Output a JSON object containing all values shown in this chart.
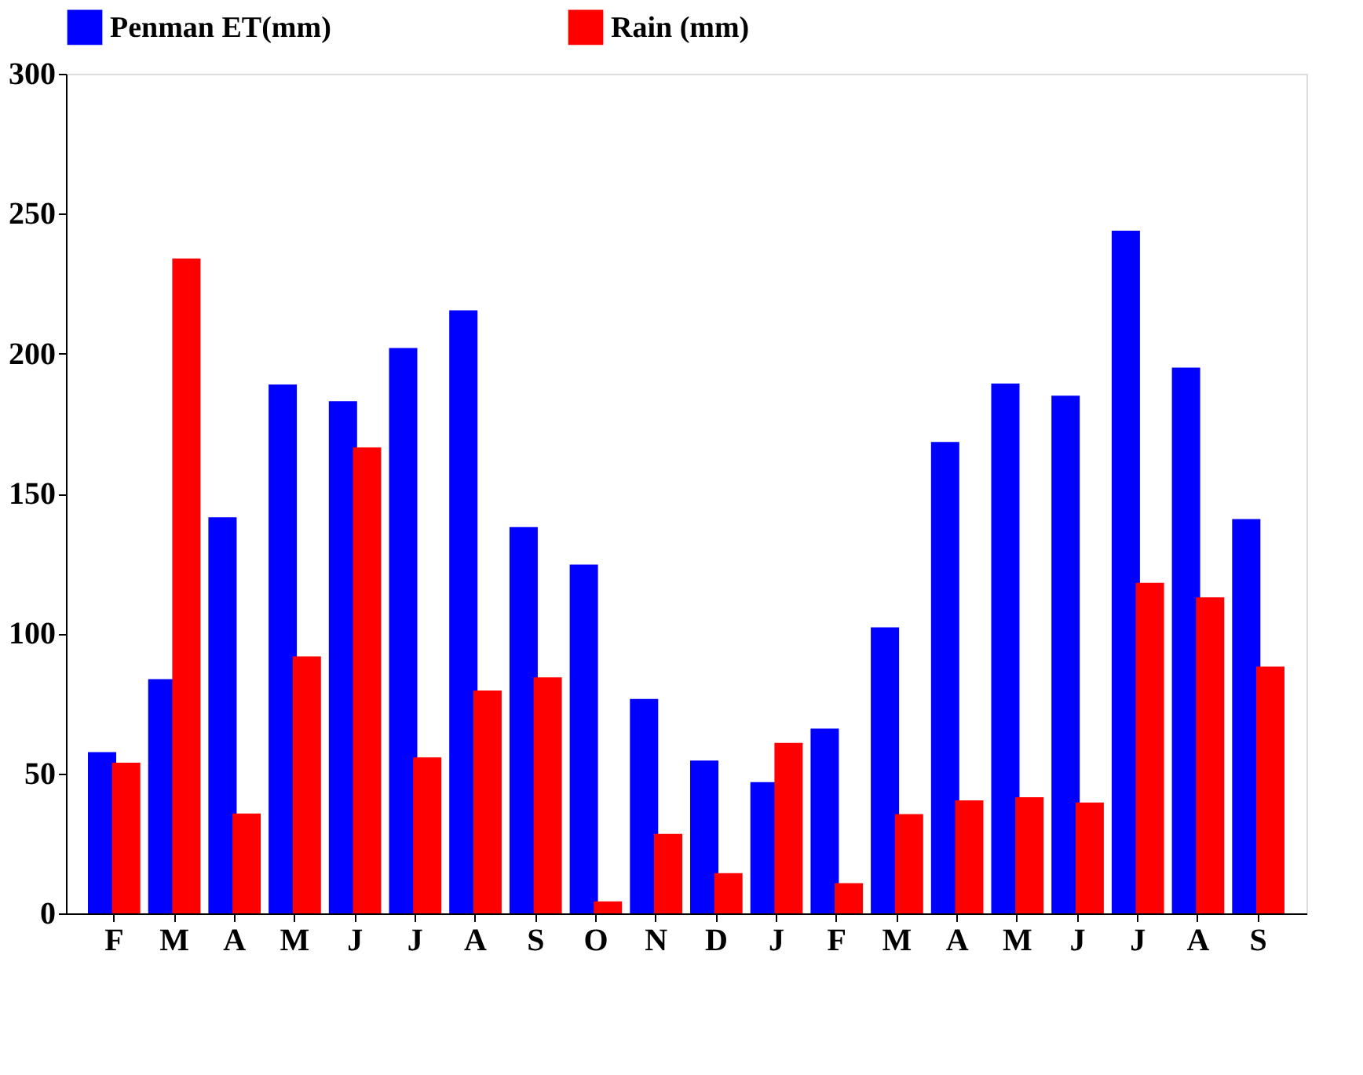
{
  "chart_data": {
    "type": "bar",
    "categories": [
      "F",
      "M",
      "A",
      "M",
      "J",
      "J",
      "A",
      "S",
      "O",
      "N",
      "D",
      "J",
      "F",
      "M",
      "A",
      "M",
      "J",
      "J",
      "A",
      "S"
    ],
    "series": [
      {
        "name": "Penman ET(mm)",
        "color": "#0000ff",
        "values": [
          57.6,
          83.7,
          141.5,
          189,
          183,
          202,
          215.5,
          138,
          124.6,
          76.6,
          54.6,
          46.9,
          66,
          102.2,
          168.4,
          189.3,
          185,
          243.9,
          195,
          140.9
        ]
      },
      {
        "name": "Rain (mm)",
        "color": "#ff0000",
        "values": [
          53.8,
          234,
          35.7,
          91.8,
          166.5,
          55.7,
          79.6,
          84.3,
          4.3,
          28.4,
          14.4,
          60.9,
          10.8,
          35.5,
          40.4,
          41.5,
          39.6,
          118.1,
          112.9,
          88.2
        ]
      }
    ],
    "ylim": [
      0,
      300
    ],
    "yticks": [
      0,
      50,
      100,
      150,
      200,
      250,
      300
    ],
    "grid": false,
    "legend": "top"
  }
}
